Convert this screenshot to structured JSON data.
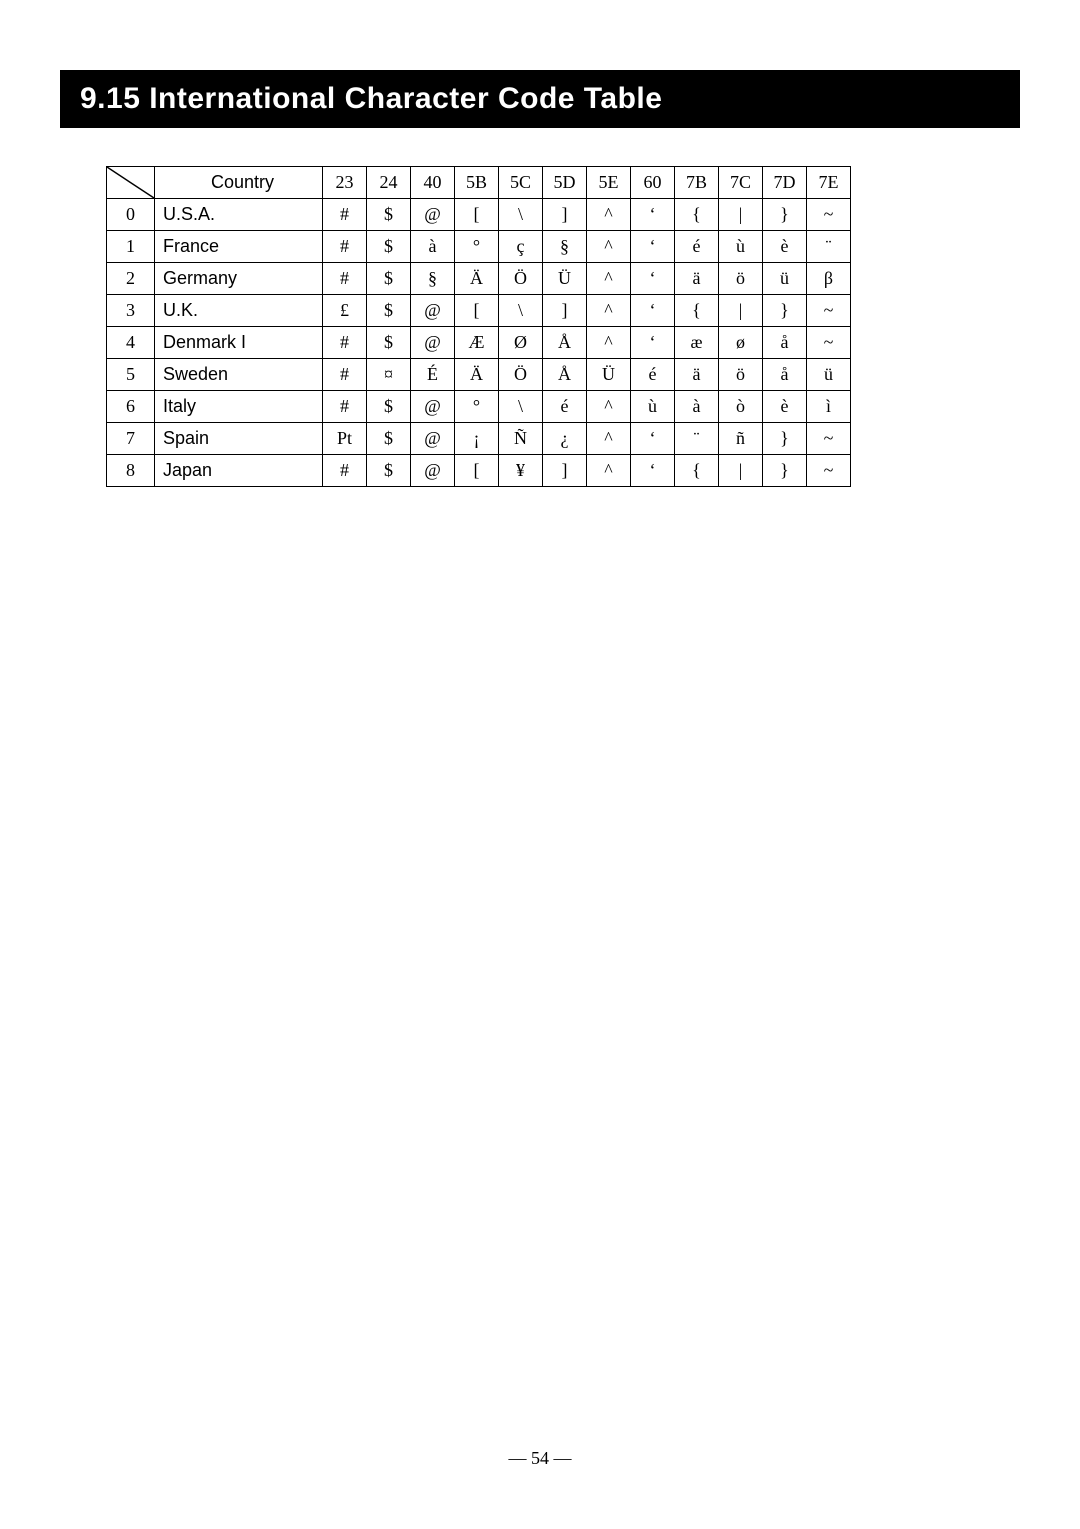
{
  "section_title": "9.15  International Character Code Table",
  "page_number": "— 54 —",
  "table": {
    "header": {
      "country_label": "Country",
      "codes": [
        "23",
        "24",
        "40",
        "5B",
        "5C",
        "5D",
        "5E",
        "60",
        "7B",
        "7C",
        "7D",
        "7E"
      ]
    },
    "rows": [
      {
        "idx": "0",
        "country": "U.S.A.",
        "cells": [
          "#",
          "$",
          "@",
          "[",
          "\\",
          "]",
          "^",
          "‘",
          "{",
          "|",
          "}",
          "~"
        ]
      },
      {
        "idx": "1",
        "country": "France",
        "cells": [
          "#",
          "$",
          "à",
          "°",
          "ç",
          "§",
          "^",
          "‘",
          "é",
          "ù",
          "è",
          "¨"
        ]
      },
      {
        "idx": "2",
        "country": "Germany",
        "cells": [
          "#",
          "$",
          "§",
          "Ä",
          "Ö",
          "Ü",
          "^",
          "‘",
          "ä",
          "ö",
          "ü",
          "β"
        ]
      },
      {
        "idx": "3",
        "country": "U.K.",
        "cells": [
          "£",
          "$",
          "@",
          "[",
          "\\",
          "]",
          "^",
          "‘",
          "{",
          "|",
          "}",
          "~"
        ]
      },
      {
        "idx": "4",
        "country": "Denmark I",
        "cells": [
          "#",
          "$",
          "@",
          "Æ",
          "Ø",
          "Å",
          "^",
          "‘",
          "æ",
          "ø",
          "å",
          "~"
        ]
      },
      {
        "idx": "5",
        "country": "Sweden",
        "cells": [
          "#",
          "¤",
          "É",
          "Ä",
          "Ö",
          "Å",
          "Ü",
          "é",
          "ä",
          "ö",
          "å",
          "ü"
        ]
      },
      {
        "idx": "6",
        "country": "Italy",
        "cells": [
          "#",
          "$",
          "@",
          "°",
          "\\",
          "é",
          "^",
          "ù",
          "à",
          "ò",
          "è",
          "ì"
        ]
      },
      {
        "idx": "7",
        "country": "Spain",
        "cells": [
          "Pt",
          "$",
          "@",
          "¡",
          "Ñ",
          "¿",
          "^",
          "‘",
          "¨",
          "ñ",
          "}",
          "~"
        ]
      },
      {
        "idx": "8",
        "country": "Japan",
        "cells": [
          "#",
          "$",
          "@",
          "[",
          "¥",
          "]",
          "^",
          "‘",
          "{",
          "|",
          "}",
          "~"
        ]
      }
    ]
  },
  "widths": {
    "idx": 48,
    "country": 168,
    "code": 44
  }
}
